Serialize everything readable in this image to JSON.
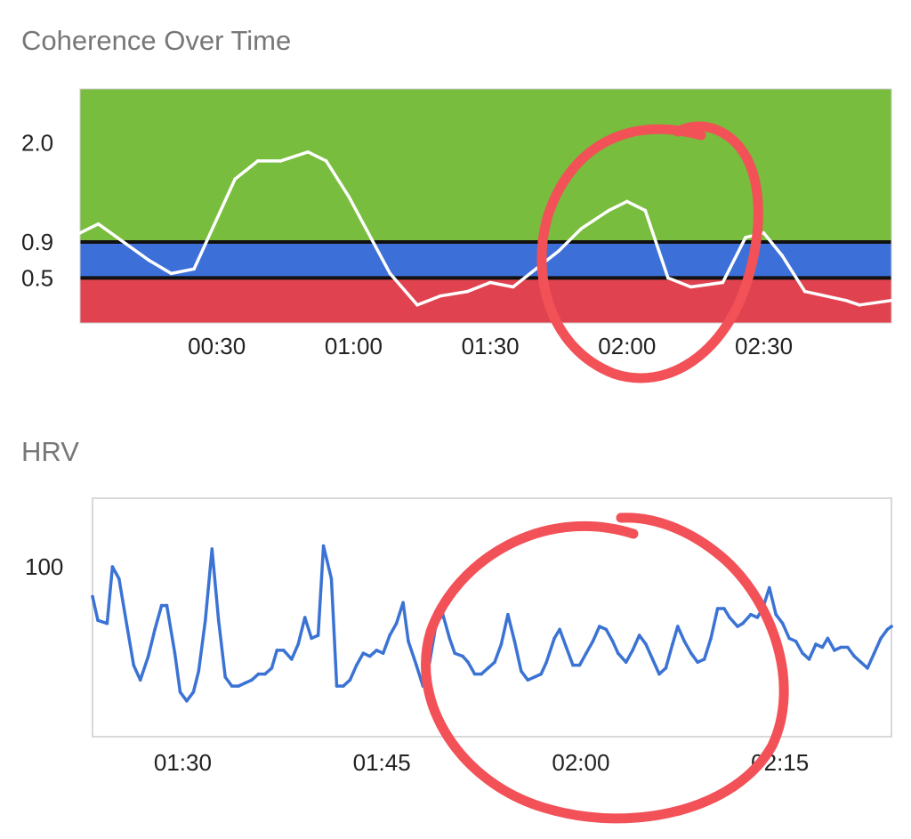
{
  "chart_data": [
    {
      "type": "line",
      "title": "Coherence Over Time",
      "xlabel": "",
      "ylabel": "",
      "x_tick_labels": [
        "00:30",
        "01:00",
        "01:30",
        "02:00",
        "02:30"
      ],
      "x_tick_seconds": [
        30,
        60,
        90,
        120,
        150
      ],
      "xlim_seconds": [
        0,
        178
      ],
      "y_tick_labels": [
        "0.5",
        "0.9",
        "2.0"
      ],
      "y_tick_values": [
        0.5,
        0.9,
        2.0
      ],
      "ylim": [
        0.0,
        2.6
      ],
      "bands": [
        {
          "from": 0.0,
          "to": 0.5,
          "color": "#e0434f"
        },
        {
          "from": 0.5,
          "to": 0.9,
          "color": "#3c6fd8"
        },
        {
          "from": 0.9,
          "to": 2.6,
          "color": "#78bd3e"
        }
      ],
      "threshold_lines": [
        0.5,
        0.9
      ],
      "line_color": "#ffffff",
      "grid": false,
      "series": [
        {
          "x_seconds": [
            0,
            4,
            15,
            20,
            25,
            34,
            39,
            44,
            50,
            54,
            59,
            68,
            74,
            79,
            85,
            90,
            95,
            105,
            110,
            116,
            120,
            124,
            129,
            134,
            141,
            146,
            150,
            154,
            159,
            168,
            171,
            178
          ],
          "values": [
            1.0,
            1.1,
            0.7,
            0.55,
            0.6,
            1.6,
            1.8,
            1.8,
            1.9,
            1.8,
            1.4,
            0.55,
            0.2,
            0.3,
            0.35,
            0.45,
            0.4,
            0.8,
            1.05,
            1.25,
            1.35,
            1.25,
            0.5,
            0.4,
            0.45,
            0.95,
            1.0,
            0.75,
            0.35,
            0.25,
            0.2,
            0.25
          ]
        }
      ]
    },
    {
      "type": "line",
      "title": "HRV",
      "xlabel": "",
      "ylabel": "",
      "x_tick_labels": [
        "01:30",
        "01:45",
        "02:00",
        "02:15"
      ],
      "x_tick_seconds": [
        90,
        105,
        120,
        135
      ],
      "xlim_seconds": [
        83.2,
        143.4
      ],
      "y_tick_labels": [
        "100"
      ],
      "y_tick_values": [
        100
      ],
      "ylim": [
        43,
        123
      ],
      "line_color": "#3b73d4",
      "grid": false,
      "series": [
        {
          "x_seconds": [
            83.2,
            83.6,
            84.3,
            84.7,
            85.2,
            85.8,
            86.3,
            86.8,
            87.4,
            87.9,
            88.4,
            88.8,
            89.4,
            89.8,
            90.3,
            90.8,
            91.2,
            91.7,
            92.2,
            92.7,
            93.2,
            93.7,
            94.2,
            94.7,
            95.2,
            95.7,
            96.2,
            96.7,
            97.1,
            97.6,
            98.2,
            98.7,
            99.2,
            99.7,
            100.2,
            100.6,
            101.2,
            101.6,
            102.1,
            102.6,
            103.1,
            103.6,
            104.1,
            104.6,
            105.1,
            105.6,
            106.1,
            106.6,
            107.0,
            107.6,
            108.1,
            108.6,
            109.1,
            109.6,
            110.1,
            110.5,
            111.1,
            111.5,
            112.0,
            112.5,
            113.0,
            113.5,
            114.0,
            114.5,
            115.0,
            115.5,
            116.0,
            116.5,
            117.0,
            117.4,
            118.0,
            118.4,
            118.9,
            119.4,
            119.9,
            120.4,
            120.9,
            121.4,
            121.9,
            122.4,
            122.8,
            123.4,
            123.9,
            124.4,
            124.9,
            125.4,
            125.9,
            126.4,
            126.9,
            127.3,
            127.8,
            128.3,
            128.8,
            129.3,
            129.8,
            130.3,
            130.8,
            131.2,
            131.8,
            132.2,
            132.8,
            133.3,
            133.7,
            134.2,
            134.7,
            135.2,
            135.7,
            136.2,
            136.7,
            137.2,
            137.7,
            138.2,
            138.6,
            139.1,
            139.6,
            140.1,
            140.6,
            141.1,
            141.6,
            142.1,
            142.6,
            143.1,
            143.4
          ],
          "values": [
            90,
            82,
            81,
            100,
            96,
            80,
            67,
            62,
            70,
            79,
            87,
            87,
            71,
            58,
            55,
            58,
            65,
            82,
            106,
            82,
            63,
            60,
            60,
            61,
            62,
            64,
            64,
            66,
            72,
            72,
            69,
            74,
            83,
            76,
            77,
            107,
            96,
            60,
            60,
            62,
            67,
            71,
            70,
            72,
            71,
            77,
            81,
            88,
            75,
            67,
            60,
            68,
            81,
            84,
            76,
            71,
            70,
            68,
            64,
            64,
            66,
            68,
            74,
            84,
            75,
            65,
            62,
            63,
            64,
            68,
            76,
            79,
            73,
            67,
            67,
            71,
            75,
            80,
            79,
            75,
            71,
            68,
            72,
            77,
            74,
            69,
            64,
            66,
            74,
            80,
            75,
            71,
            68,
            69,
            76,
            86,
            86,
            83,
            80,
            81,
            84,
            83,
            86,
            93,
            84,
            81,
            76,
            75,
            71,
            69,
            74,
            73,
            76,
            72,
            73,
            73,
            70,
            68,
            66,
            71,
            76,
            79,
            80
          ]
        }
      ]
    }
  ],
  "annotations": {
    "marker_color": "#f25157"
  }
}
